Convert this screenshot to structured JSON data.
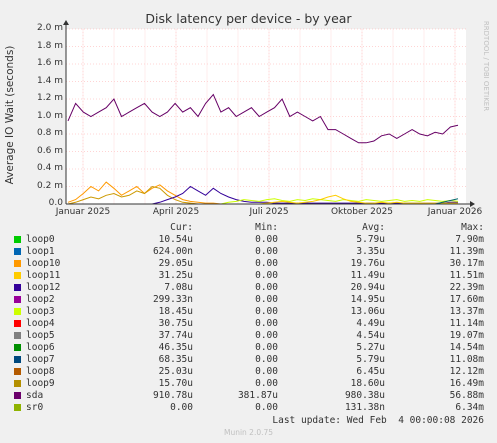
{
  "chart_data": {
    "type": "line",
    "title": "Disk latency per device - by year",
    "ylabel": "Average IO Wait (seconds)",
    "ylim": [
      0,
      2.0
    ],
    "yticks": [
      "0.0",
      "0.2 m",
      "0.4 m",
      "0.6 m",
      "0.8 m",
      "1.0 m",
      "1.2 m",
      "1.4 m",
      "1.6 m",
      "1.8 m",
      "2.0 m"
    ],
    "xticks": [
      "Januar 2025",
      "April 2025",
      "Juli 2025",
      "Oktober 2025",
      "Januar 2026"
    ],
    "grid": true,
    "side_label": "RRDTOOL / TOBI OETIKER",
    "series": [
      {
        "name": "sda",
        "color": "#660066",
        "values": [
          0.95,
          1.15,
          1.05,
          1.0,
          1.05,
          1.1,
          1.2,
          1.0,
          1.05,
          1.1,
          1.15,
          1.05,
          1.0,
          1.05,
          1.15,
          1.05,
          1.1,
          1.0,
          1.15,
          1.25,
          1.05,
          1.1,
          1.0,
          1.05,
          1.1,
          1.0,
          1.05,
          1.1,
          1.2,
          1.0,
          1.05,
          1.0,
          0.95,
          1.0,
          0.85,
          0.85,
          0.8,
          0.75,
          0.7,
          0.7,
          0.72,
          0.78,
          0.8,
          0.75,
          0.8,
          0.85,
          0.8,
          0.78,
          0.82,
          0.8,
          0.88,
          0.9
        ]
      },
      {
        "name": "loop10",
        "color": "#ff9900",
        "values": [
          0.02,
          0.05,
          0.12,
          0.2,
          0.15,
          0.25,
          0.18,
          0.1,
          0.15,
          0.2,
          0.12,
          0.18,
          0.22,
          0.15,
          0.1,
          0.05,
          0.03,
          0.02,
          0.01,
          0.01,
          0,
          0,
          0,
          0,
          0,
          0,
          0,
          0,
          0,
          0,
          0,
          0,
          0,
          0,
          0,
          0,
          0,
          0,
          0,
          0,
          0,
          0,
          0,
          0,
          0,
          0,
          0,
          0,
          0,
          0,
          0,
          0
        ]
      },
      {
        "name": "loop9",
        "color": "#cc9900",
        "values": [
          0,
          0.02,
          0.05,
          0.08,
          0.06,
          0.1,
          0.12,
          0.08,
          0.1,
          0.15,
          0.12,
          0.2,
          0.18,
          0.1,
          0.05,
          0.02,
          0.01,
          0,
          0,
          0,
          0,
          0,
          0,
          0,
          0,
          0,
          0,
          0,
          0,
          0,
          0,
          0,
          0,
          0,
          0,
          0,
          0,
          0,
          0,
          0,
          0,
          0,
          0,
          0,
          0,
          0,
          0,
          0,
          0,
          0,
          0,
          0
        ]
      },
      {
        "name": "loop12",
        "color": "#330099",
        "values": [
          0,
          0,
          0,
          0,
          0,
          0,
          0,
          0,
          0,
          0,
          0,
          0,
          0.02,
          0.05,
          0.08,
          0.12,
          0.2,
          0.15,
          0.1,
          0.18,
          0.12,
          0.08,
          0.05,
          0.03,
          0.02,
          0.02,
          0.02,
          0.01,
          0.01,
          0.01,
          0.01,
          0.01,
          0.01,
          0.01,
          0.01,
          0.01,
          0.01,
          0.01,
          0.01,
          0.01,
          0.01,
          0.01,
          0.01,
          0.01,
          0.01,
          0.01,
          0.01,
          0.01,
          0.01,
          0.01,
          0.02,
          0.02
        ]
      },
      {
        "name": "loop3",
        "color": "#ccff00",
        "values": [
          0,
          0,
          0,
          0,
          0,
          0,
          0,
          0,
          0,
          0,
          0,
          0,
          0,
          0,
          0,
          0,
          0,
          0,
          0,
          0,
          0,
          0.02,
          0.03,
          0.05,
          0.04,
          0.03,
          0.05,
          0.06,
          0.04,
          0.03,
          0.05,
          0.04,
          0.06,
          0.05,
          0.04,
          0.03,
          0.05,
          0.04,
          0.03,
          0.05,
          0.04,
          0.03,
          0.04,
          0.05,
          0.03,
          0.04,
          0.03,
          0.05,
          0.04,
          0.03,
          0.04,
          0.03
        ]
      },
      {
        "name": "loop11",
        "color": "#ffcc00",
        "values": [
          0,
          0,
          0,
          0,
          0,
          0,
          0,
          0,
          0,
          0,
          0,
          0,
          0,
          0,
          0,
          0,
          0,
          0,
          0,
          0,
          0,
          0,
          0,
          0,
          0,
          0,
          0.01,
          0.02,
          0.03,
          0.02,
          0.01,
          0.02,
          0.03,
          0.05,
          0.08,
          0.1,
          0.06,
          0.03,
          0.02,
          0.01,
          0.01,
          0.02,
          0.01,
          0.02,
          0.01,
          0.01,
          0.01,
          0.01,
          0.01,
          0.01,
          0.01,
          0.01
        ]
      },
      {
        "name": "loop7",
        "color": "#006666",
        "values": [
          0,
          0,
          0,
          0,
          0,
          0,
          0,
          0,
          0,
          0,
          0,
          0,
          0,
          0,
          0,
          0,
          0,
          0,
          0,
          0,
          0,
          0,
          0,
          0,
          0,
          0,
          0,
          0,
          0,
          0,
          0,
          0,
          0,
          0,
          0,
          0,
          0,
          0,
          0,
          0,
          0,
          0,
          0,
          0,
          0,
          0,
          0,
          0,
          0,
          0.02,
          0.04,
          0.06
        ]
      }
    ]
  },
  "legend": {
    "headers": {
      "cur": "Cur:",
      "min": "Min:",
      "avg": "Avg:",
      "max": "Max:"
    },
    "rows": [
      {
        "name": "loop0",
        "color": "#00cc00",
        "cur": "10.54u",
        "min": "0.00",
        "avg": "5.79u",
        "max": "7.90m"
      },
      {
        "name": "loop1",
        "color": "#0066b3",
        "cur": "624.00n",
        "min": "0.00",
        "avg": "3.35u",
        "max": "11.39m"
      },
      {
        "name": "loop10",
        "color": "#ff9900",
        "cur": "29.05u",
        "min": "0.00",
        "avg": "19.76u",
        "max": "30.17m"
      },
      {
        "name": "loop11",
        "color": "#ffcc00",
        "cur": "31.25u",
        "min": "0.00",
        "avg": "11.49u",
        "max": "11.51m"
      },
      {
        "name": "loop12",
        "color": "#330099",
        "cur": "7.08u",
        "min": "0.00",
        "avg": "20.94u",
        "max": "22.39m"
      },
      {
        "name": "loop2",
        "color": "#990099",
        "cur": "299.33n",
        "min": "0.00",
        "avg": "14.95u",
        "max": "17.60m"
      },
      {
        "name": "loop3",
        "color": "#ccff00",
        "cur": "18.45u",
        "min": "0.00",
        "avg": "13.06u",
        "max": "13.37m"
      },
      {
        "name": "loop4",
        "color": "#ff0000",
        "cur": "30.75u",
        "min": "0.00",
        "avg": "4.49u",
        "max": "11.14m"
      },
      {
        "name": "loop5",
        "color": "#808080",
        "cur": "37.74u",
        "min": "0.00",
        "avg": "4.54u",
        "max": "19.07m"
      },
      {
        "name": "loop6",
        "color": "#008f00",
        "cur": "46.35u",
        "min": "0.00",
        "avg": "5.27u",
        "max": "14.54m"
      },
      {
        "name": "loop7",
        "color": "#00487d",
        "cur": "68.35u",
        "min": "0.00",
        "avg": "5.79u",
        "max": "11.08m"
      },
      {
        "name": "loop8",
        "color": "#b35a00",
        "cur": "25.03u",
        "min": "0.00",
        "avg": "6.45u",
        "max": "12.12m"
      },
      {
        "name": "loop9",
        "color": "#b38f00",
        "cur": "15.70u",
        "min": "0.00",
        "avg": "18.60u",
        "max": "16.49m"
      },
      {
        "name": "sda",
        "color": "#6b006b",
        "cur": "910.78u",
        "min": "381.87u",
        "avg": "980.38u",
        "max": "56.88m"
      },
      {
        "name": "sr0",
        "color": "#8fb300",
        "cur": "0.00",
        "min": "0.00",
        "avg": "131.38n",
        "max": "6.34m"
      }
    ],
    "last_update": "Last update: Wed Feb  4 00:00:08 2026"
  },
  "footer": "Munin 2.0.75"
}
